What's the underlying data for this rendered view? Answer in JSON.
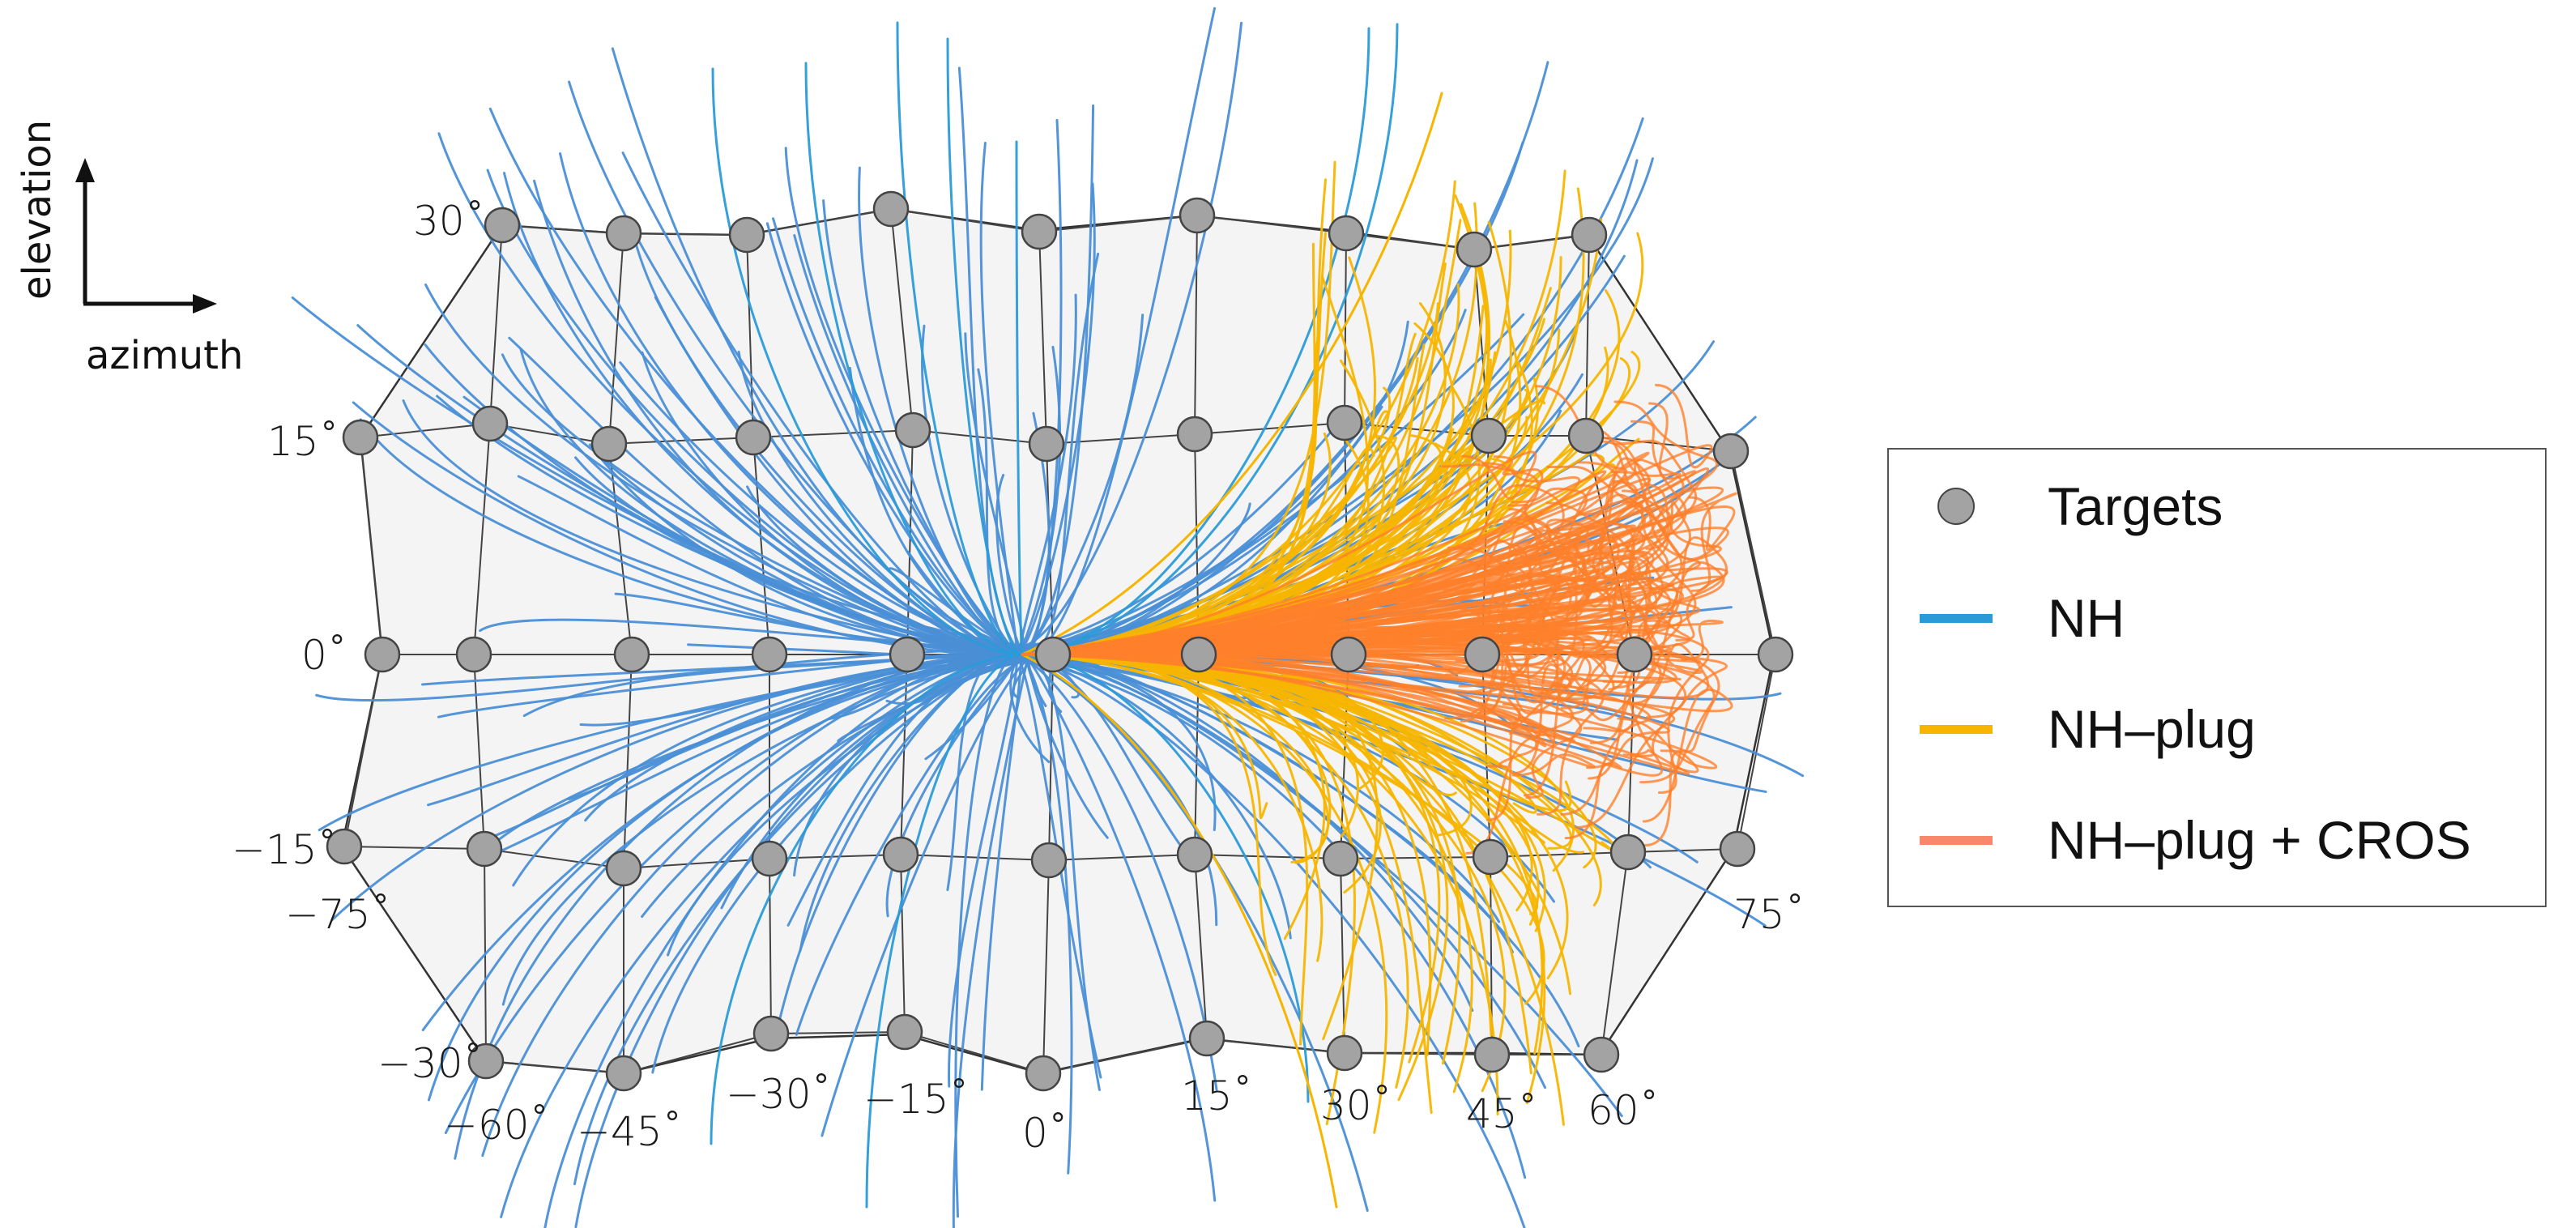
{
  "axes_indicator": {
    "vertical_label": "elevation",
    "horizontal_label": "azimuth"
  },
  "elevation_labels": {
    "e30": "30˚",
    "e15": "15˚",
    "e0": "0˚",
    "em15": "−15˚",
    "em30": "−30˚"
  },
  "azimuth_labels": {
    "am75": "−75˚",
    "am60": "−60˚",
    "am45": "−45˚",
    "am30": "−30˚",
    "am15": "−15˚",
    "a0": "0˚",
    "a15": "15˚",
    "a30": "30˚",
    "a45": "45˚",
    "a60": "60˚",
    "a75": "75˚"
  },
  "legend": {
    "targets": "Targets",
    "nh": "NH",
    "nh_plug": "NH–plug",
    "nh_plug_cros": "NH–plug + CROS"
  },
  "colors": {
    "nh": "#4a8fd6",
    "nh_legend": "#2b9bd8",
    "nh_plug": "#f7b500",
    "nh_plug_cros": "#ff7f2a",
    "nh_plug_cros_legend": "#f9876a",
    "target_fill": "#a3a3a3",
    "grid_fill": "#f4f4f4"
  }
}
